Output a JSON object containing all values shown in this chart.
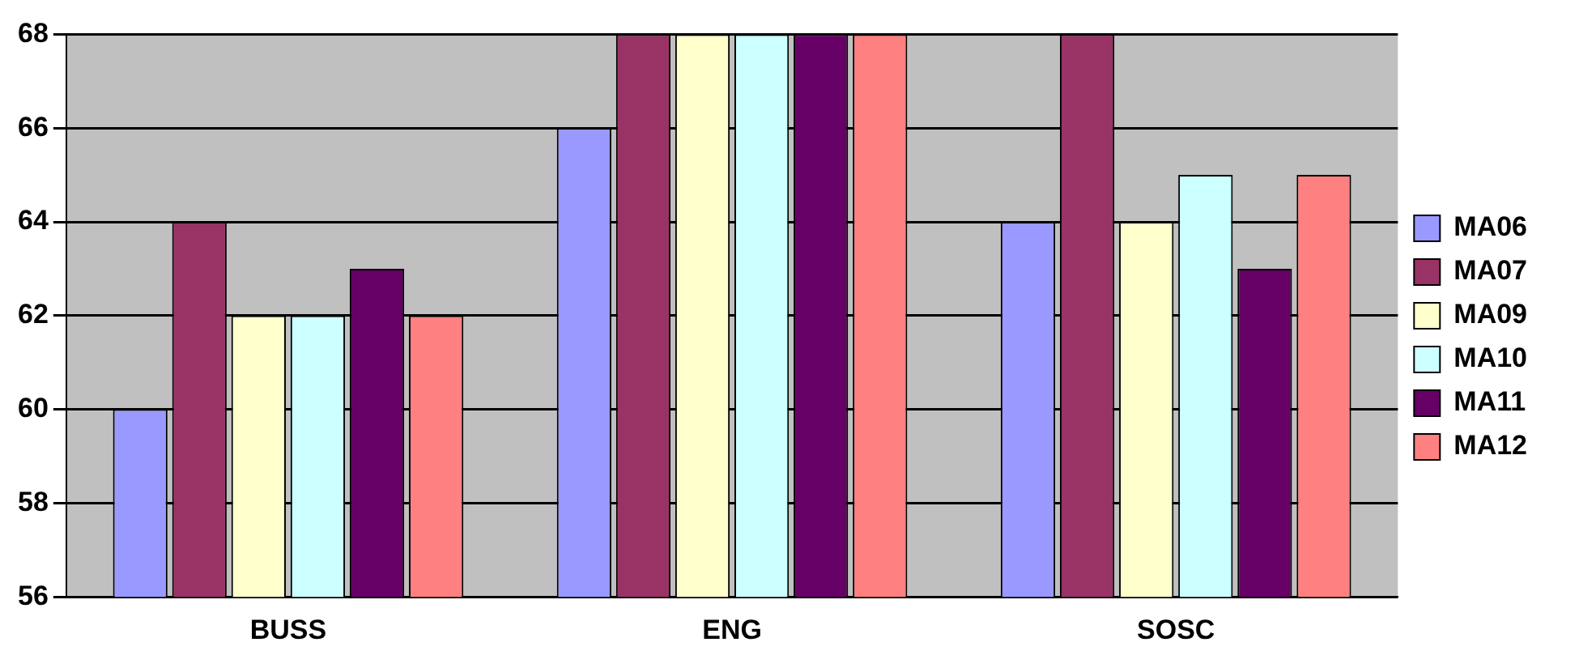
{
  "chart_data": {
    "type": "bar",
    "categories": [
      "BUSS",
      "ENG",
      "SOSC"
    ],
    "series": [
      {
        "name": "MA06",
        "color": "#9999ff",
        "values": [
          60,
          66,
          64
        ]
      },
      {
        "name": "MA07",
        "color": "#993366",
        "values": [
          64,
          68,
          68
        ]
      },
      {
        "name": "MA09",
        "color": "#ffffcc",
        "values": [
          62,
          68,
          64
        ]
      },
      {
        "name": "MA10",
        "color": "#ccffff",
        "values": [
          62,
          68,
          65
        ]
      },
      {
        "name": "MA11",
        "color": "#660066",
        "values": [
          63,
          68,
          63
        ]
      },
      {
        "name": "MA12",
        "color": "#ff8080",
        "values": [
          62,
          68,
          65
        ]
      }
    ],
    "ylim": [
      56,
      68
    ],
    "yticks": [
      56,
      58,
      60,
      62,
      64,
      66,
      68
    ],
    "grid": "y",
    "legend": "right"
  }
}
